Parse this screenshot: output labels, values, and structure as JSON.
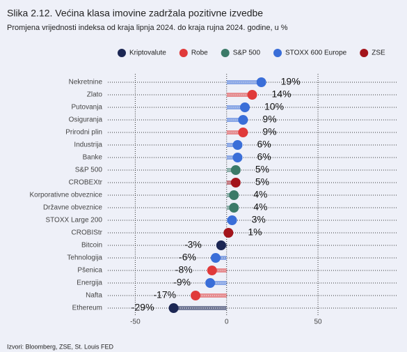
{
  "chart_data": {
    "type": "lollipop",
    "title": "Slika 2.12. Većina klasa imovine zadržala pozitivne izvedbe",
    "subtitle": "Promjena vrijednosti indeksa od kraja lipnja 2024. do kraja rujna 2024. godine, u %",
    "source": "Izvori: Bloomberg, ZSE, St. Louis FED",
    "categories": [
      "Nekretnine",
      "Zlato",
      "Putovanja",
      "Osiguranja",
      "Prirodni plin",
      "Industrija",
      "Banke",
      "S&P 500",
      "CROBEXtr",
      "Korporativne obveznice",
      "Državne obveznice",
      "STOXX Large 200",
      "CROBIStr",
      "Bitcoin",
      "Tehnologija",
      "Pšenica",
      "Energija",
      "Nafta",
      "Ethereum"
    ],
    "series": [
      {
        "name": "Kriptovalute",
        "color": "#1c2754",
        "values": [
          null,
          null,
          null,
          null,
          null,
          null,
          null,
          null,
          null,
          null,
          null,
          null,
          null,
          -3,
          null,
          null,
          null,
          null,
          -29
        ],
        "value_labels": [
          null,
          null,
          null,
          null,
          null,
          null,
          null,
          null,
          null,
          null,
          null,
          null,
          null,
          "-3%",
          null,
          null,
          null,
          null,
          "-29%"
        ]
      },
      {
        "name": "Robe",
        "color": "#e03a3a",
        "values": [
          null,
          14,
          null,
          null,
          9,
          null,
          null,
          null,
          null,
          null,
          null,
          null,
          null,
          null,
          null,
          -8,
          null,
          -17,
          null
        ],
        "value_labels": [
          null,
          "14%",
          null,
          null,
          "9%",
          null,
          null,
          null,
          null,
          null,
          null,
          null,
          null,
          null,
          null,
          "-8%",
          null,
          "-17%",
          null
        ]
      },
      {
        "name": "S&P 500",
        "color": "#3b7a68",
        "values": [
          null,
          null,
          null,
          null,
          null,
          null,
          null,
          5,
          null,
          4,
          4,
          null,
          null,
          null,
          null,
          null,
          null,
          null,
          null
        ],
        "value_labels": [
          null,
          null,
          null,
          null,
          null,
          null,
          null,
          "5%",
          null,
          "4%",
          "4%",
          null,
          null,
          null,
          null,
          null,
          null,
          null,
          null
        ]
      },
      {
        "name": "STOXX 600 Europe",
        "color": "#3a6ed8",
        "values": [
          19,
          null,
          10,
          9,
          null,
          6,
          6,
          null,
          null,
          null,
          null,
          3,
          null,
          null,
          -6,
          null,
          -9,
          null,
          null
        ],
        "value_labels": [
          "19%",
          null,
          "10%",
          "9%",
          null,
          "6%",
          "6%",
          null,
          null,
          null,
          null,
          "3%",
          null,
          null,
          "-6%",
          null,
          "-9%",
          null,
          null
        ]
      },
      {
        "name": "ZSE",
        "color": "#a3141b",
        "values": [
          null,
          null,
          null,
          null,
          null,
          null,
          null,
          null,
          5,
          null,
          null,
          null,
          1,
          null,
          null,
          null,
          null,
          null,
          null
        ],
        "value_labels": [
          null,
          null,
          null,
          null,
          null,
          null,
          null,
          null,
          "5%",
          null,
          null,
          null,
          "1%",
          null,
          null,
          null,
          null,
          null,
          null
        ]
      }
    ],
    "xlim": [
      -65,
      93
    ],
    "xticks": [
      -50,
      0,
      50
    ],
    "grid": true
  }
}
